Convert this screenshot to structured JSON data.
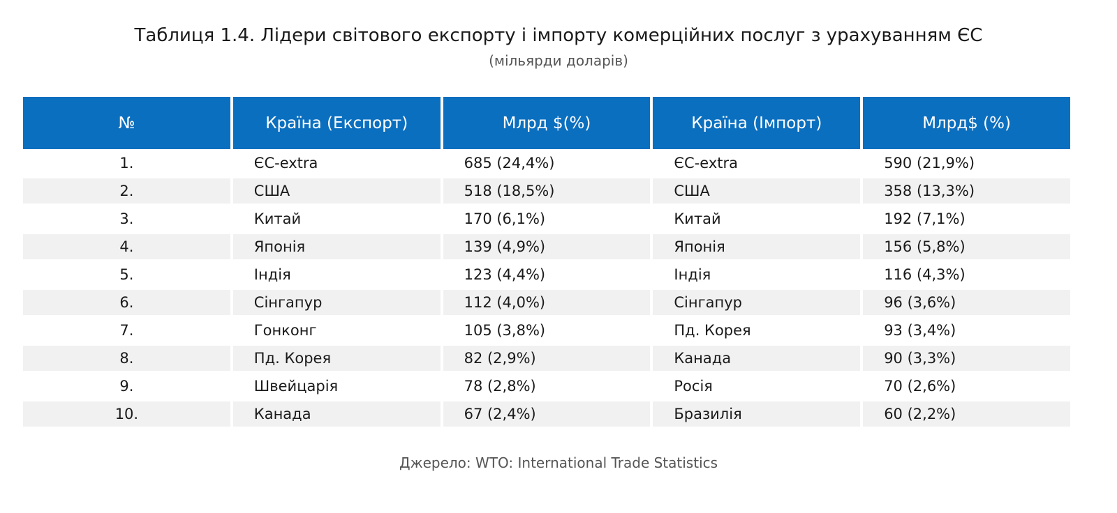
{
  "header": {
    "title": "Таблиця 1.4. Лідери світового експорту і імпорту комерційних послуг з урахуванням ЄС",
    "subtitle": "(мільярди доларів)"
  },
  "table": {
    "headers": [
      "№",
      "Країна (Експорт)",
      "Млрд $(%)",
      "Країна (Імпорт)",
      "Млрд$ (%)"
    ],
    "rows": [
      [
        "1.",
        "ЄС-extra",
        "685 (24,4%)",
        "ЄС-extra",
        "590 (21,9%)"
      ],
      [
        "2.",
        "США",
        "518 (18,5%)",
        "США",
        "358 (13,3%)"
      ],
      [
        "3.",
        "Китай",
        "170 (6,1%)",
        "Китай",
        "192 (7,1%)"
      ],
      [
        "4.",
        "Японія",
        "139 (4,9%)",
        "Японія",
        "156 (5,8%)"
      ],
      [
        "5.",
        "Індія",
        "123 (4,4%)",
        "Індія",
        "116 (4,3%)"
      ],
      [
        "6.",
        "Сінгапур",
        "112 (4,0%)",
        "Сінгапур",
        "96 (3,6%)"
      ],
      [
        "7.",
        "Гонконг",
        "105 (3,8%)",
        "Пд. Корея",
        "93 (3,4%)"
      ],
      [
        "8.",
        "Пд. Корея",
        "82 (2,9%)",
        "Канада",
        "90 (3,3%)"
      ],
      [
        "9.",
        "Швейцарія",
        "78 (2,8%)",
        "Росія",
        "70 (2,6%)"
      ],
      [
        "10.",
        "Канада",
        "67 (2,4%)",
        "Бразилія",
        "60 (2,2%)"
      ]
    ]
  },
  "source": "Джерело: WTO: International Trade Statistics"
}
